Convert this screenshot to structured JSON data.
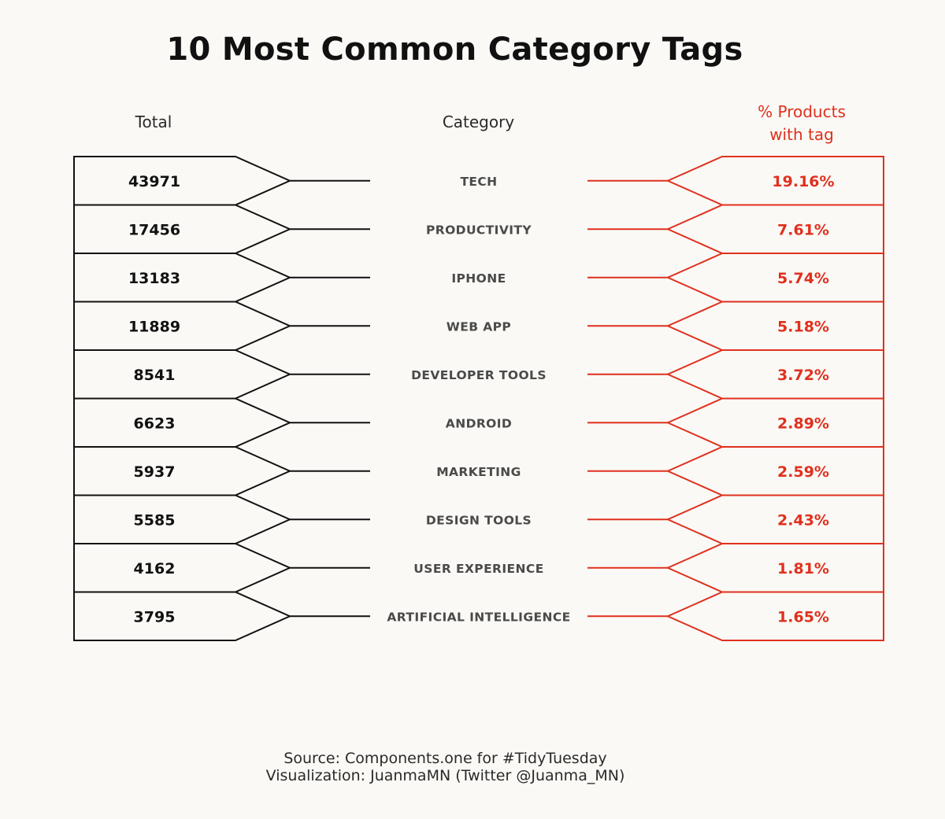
{
  "title": "10 Most Common Category Tags",
  "headers": {
    "total": "Total",
    "category": "Category",
    "pct_line1": "% Products",
    "pct_line2": "with tag"
  },
  "colors": {
    "left": "#111111",
    "right": "#e0301e",
    "category_text": "#4a4a4a",
    "background": "#faf9f5"
  },
  "chart_data": {
    "type": "table",
    "title": "10 Most Common Category Tags",
    "columns": [
      "Total",
      "Category",
      "% Products with tag"
    ],
    "rows": [
      {
        "total": "43971",
        "category": "TECH",
        "pct": "19.16%"
      },
      {
        "total": "17456",
        "category": "PRODUCTIVITY",
        "pct": "7.61%"
      },
      {
        "total": "13183",
        "category": "IPHONE",
        "pct": "5.74%"
      },
      {
        "total": "11889",
        "category": "WEB APP",
        "pct": "5.18%"
      },
      {
        "total": "8541",
        "category": "DEVELOPER TOOLS",
        "pct": "3.72%"
      },
      {
        "total": "6623",
        "category": "ANDROID",
        "pct": "2.89%"
      },
      {
        "total": "5937",
        "category": "MARKETING",
        "pct": "2.59%"
      },
      {
        "total": "5585",
        "category": "DESIGN TOOLS",
        "pct": "2.43%"
      },
      {
        "total": "4162",
        "category": "USER EXPERIENCE",
        "pct": "1.81%"
      },
      {
        "total": "3795",
        "category": "ARTIFICIAL INTELLIGENCE",
        "pct": "1.65%"
      }
    ]
  },
  "footer": {
    "source": "Source: Components.one for #TidyTuesday",
    "credit": "Visualization: JuanmaMN (Twitter @Juanma_MN)"
  }
}
